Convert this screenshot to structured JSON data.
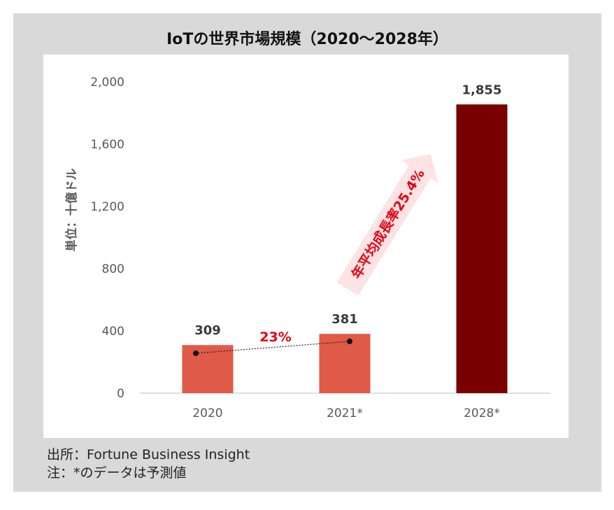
{
  "chart_data": {
    "type": "bar",
    "title": "IoTの世界市場規模（2020～2028年）",
    "ylabel": "単位：十億ドル",
    "xlabel": "",
    "ylim": [
      0,
      2000
    ],
    "yticks": [
      "0",
      "400",
      "800",
      "1,200",
      "1,600",
      "2,000"
    ],
    "categories": [
      "2020",
      "2021*",
      "2028*"
    ],
    "values": [
      309,
      381,
      1855
    ],
    "value_labels": [
      "309",
      "381",
      "1,855"
    ],
    "bar_colors": [
      "#e05a48",
      "#e05a48",
      "#7a0000"
    ],
    "grid": false,
    "annotations": {
      "growth_2020_2021": "23%",
      "cagr": "年平均成長率25.4%"
    },
    "colors": {
      "accent_red": "#e60012",
      "arrow_fill": "#fde3e3"
    }
  },
  "footer": {
    "source": "出所：Fortune Business Insight",
    "note": "注：*のデータは予測値"
  }
}
